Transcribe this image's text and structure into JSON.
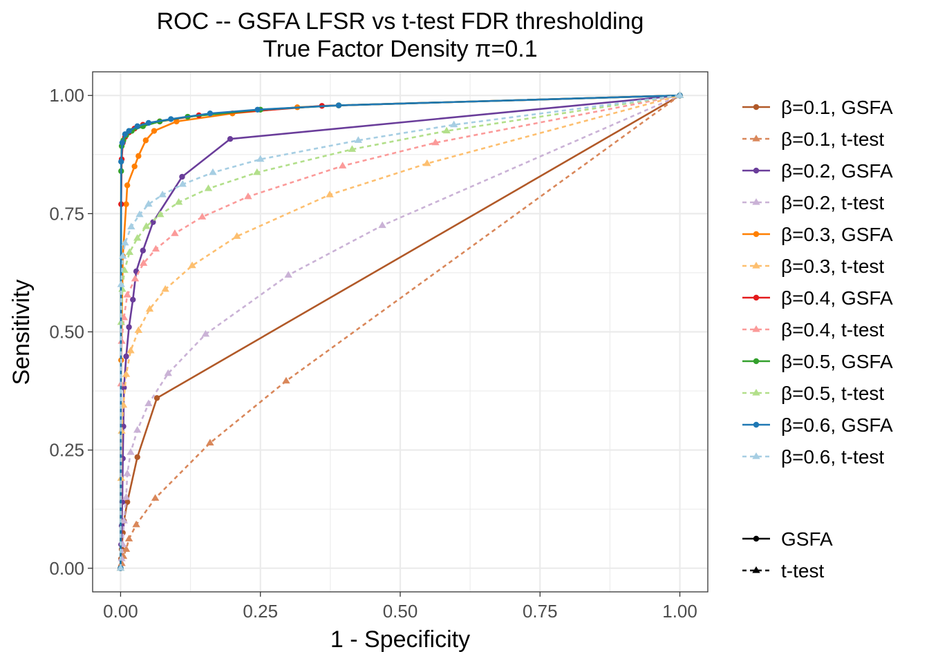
{
  "chart_data": {
    "type": "line",
    "title": "ROC -- GSFA LFSR vs t-test FDR thresholding",
    "subtitle": "True Factor Density π=0.1",
    "xlabel": "1 - Specificity",
    "ylabel": "Sensitivity",
    "xlim": [
      -0.05,
      1.05
    ],
    "ylim": [
      -0.05,
      1.05
    ],
    "xticks": [
      0,
      0.25,
      0.5,
      0.75,
      1
    ],
    "xtick_labels": [
      "0.00",
      "0.25",
      "0.50",
      "0.75",
      "1.00"
    ],
    "yticks": [
      0,
      0.25,
      0.5,
      0.75,
      1
    ],
    "ytick_labels": [
      "0.00",
      "0.25",
      "0.50",
      "0.75",
      "1.00"
    ],
    "grid": true,
    "legend_position": "right",
    "series": [
      {
        "name": "β=0.1, GSFA",
        "color": "#B15928",
        "method": "GSFA",
        "marker": "circle",
        "dashed": false,
        "points": [
          [
            0,
            0
          ],
          [
            0.001,
            0.02
          ],
          [
            0.002,
            0.04
          ],
          [
            0.004,
            0.075
          ],
          [
            0.006,
            0.1
          ],
          [
            0.012,
            0.14
          ],
          [
            0.03,
            0.235
          ],
          [
            0.065,
            0.36
          ],
          [
            1,
            1
          ]
        ]
      },
      {
        "name": "β=0.1, t-test",
        "color": "#D9875A",
        "method": "t-test",
        "marker": "triangle",
        "dashed": true,
        "points": [
          [
            0,
            0
          ],
          [
            0.002,
            0.01
          ],
          [
            0.005,
            0.025
          ],
          [
            0.01,
            0.04
          ],
          [
            0.015,
            0.062
          ],
          [
            0.028,
            0.092
          ],
          [
            0.062,
            0.148
          ],
          [
            0.16,
            0.265
          ],
          [
            0.296,
            0.396
          ],
          [
            1,
            1
          ]
        ]
      },
      {
        "name": "β=0.2, GSFA",
        "color": "#6A3D9A",
        "method": "GSFA",
        "marker": "circle",
        "dashed": false,
        "points": [
          [
            0,
            0
          ],
          [
            0.001,
            0.05
          ],
          [
            0.002,
            0.09
          ],
          [
            0.003,
            0.14
          ],
          [
            0.004,
            0.232
          ],
          [
            0.005,
            0.3
          ],
          [
            0.006,
            0.382
          ],
          [
            0.01,
            0.448
          ],
          [
            0.015,
            0.51
          ],
          [
            0.022,
            0.568
          ],
          [
            0.028,
            0.628
          ],
          [
            0.04,
            0.672
          ],
          [
            0.058,
            0.732
          ],
          [
            0.11,
            0.828
          ],
          [
            0.196,
            0.908
          ],
          [
            1,
            1
          ]
        ]
      },
      {
        "name": "β=0.2, t-test",
        "color": "#CAB2D6",
        "method": "t-test",
        "marker": "triangle",
        "dashed": true,
        "points": [
          [
            0,
            0
          ],
          [
            0.002,
            0.02
          ],
          [
            0.004,
            0.05
          ],
          [
            0.006,
            0.1
          ],
          [
            0.01,
            0.15
          ],
          [
            0.012,
            0.2
          ],
          [
            0.018,
            0.245
          ],
          [
            0.03,
            0.292
          ],
          [
            0.05,
            0.348
          ],
          [
            0.085,
            0.412
          ],
          [
            0.152,
            0.495
          ],
          [
            0.3,
            0.62
          ],
          [
            0.468,
            0.725
          ],
          [
            1,
            1
          ]
        ]
      },
      {
        "name": "β=0.3, GSFA",
        "color": "#FF7F00",
        "method": "GSFA",
        "marker": "circle",
        "dashed": false,
        "points": [
          [
            0,
            0
          ],
          [
            0.001,
            0.44
          ],
          [
            0.004,
            0.66
          ],
          [
            0.01,
            0.77
          ],
          [
            0.012,
            0.81
          ],
          [
            0.025,
            0.85
          ],
          [
            0.032,
            0.872
          ],
          [
            0.045,
            0.905
          ],
          [
            0.06,
            0.925
          ],
          [
            0.1,
            0.945
          ],
          [
            0.2,
            0.962
          ],
          [
            0.316,
            0.975
          ],
          [
            0.39,
            0.979
          ],
          [
            1,
            1
          ]
        ]
      },
      {
        "name": "β=0.3, t-test",
        "color": "#FDBF6F",
        "method": "t-test",
        "marker": "triangle",
        "dashed": true,
        "points": [
          [
            0,
            0
          ],
          [
            0.001,
            0.19
          ],
          [
            0.002,
            0.29
          ],
          [
            0.005,
            0.345
          ],
          [
            0.01,
            0.41
          ],
          [
            0.018,
            0.46
          ],
          [
            0.032,
            0.503
          ],
          [
            0.052,
            0.548
          ],
          [
            0.08,
            0.59
          ],
          [
            0.128,
            0.64
          ],
          [
            0.208,
            0.702
          ],
          [
            0.374,
            0.79
          ],
          [
            0.548,
            0.856
          ],
          [
            1,
            1
          ]
        ]
      },
      {
        "name": "β=0.4, GSFA",
        "color": "#E31A1C",
        "method": "GSFA",
        "marker": "circle",
        "dashed": false,
        "points": [
          [
            0,
            0
          ],
          [
            0.001,
            0.77
          ],
          [
            0.002,
            0.865
          ],
          [
            0.004,
            0.9
          ],
          [
            0.008,
            0.912
          ],
          [
            0.015,
            0.922
          ],
          [
            0.025,
            0.93
          ],
          [
            0.04,
            0.938
          ],
          [
            0.07,
            0.945
          ],
          [
            0.14,
            0.958
          ],
          [
            0.36,
            0.978
          ],
          [
            1,
            1
          ]
        ]
      },
      {
        "name": "β=0.4, t-test",
        "color": "#FB9A99",
        "method": "t-test",
        "marker": "triangle",
        "dashed": true,
        "points": [
          [
            0,
            0
          ],
          [
            0.001,
            0.39
          ],
          [
            0.002,
            0.48
          ],
          [
            0.006,
            0.53
          ],
          [
            0.012,
            0.578
          ],
          [
            0.026,
            0.612
          ],
          [
            0.041,
            0.645
          ],
          [
            0.063,
            0.675
          ],
          [
            0.097,
            0.708
          ],
          [
            0.146,
            0.743
          ],
          [
            0.228,
            0.786
          ],
          [
            0.397,
            0.851
          ],
          [
            0.563,
            0.9
          ],
          [
            1,
            1
          ]
        ]
      },
      {
        "name": "β=0.5, GSFA",
        "color": "#33A02C",
        "method": "GSFA",
        "marker": "circle",
        "dashed": false,
        "points": [
          [
            0,
            0
          ],
          [
            0.001,
            0.84
          ],
          [
            0.002,
            0.893
          ],
          [
            0.005,
            0.905
          ],
          [
            0.01,
            0.916
          ],
          [
            0.02,
            0.925
          ],
          [
            0.04,
            0.935
          ],
          [
            0.07,
            0.945
          ],
          [
            0.12,
            0.955
          ],
          [
            0.25,
            0.97
          ],
          [
            0.39,
            0.979
          ],
          [
            1,
            1
          ]
        ]
      },
      {
        "name": "β=0.5, t-test",
        "color": "#B2DF8A",
        "method": "t-test",
        "marker": "triangle",
        "dashed": true,
        "points": [
          [
            0,
            0
          ],
          [
            0.001,
            0.52
          ],
          [
            0.003,
            0.59
          ],
          [
            0.007,
            0.63
          ],
          [
            0.016,
            0.668
          ],
          [
            0.03,
            0.698
          ],
          [
            0.046,
            0.723
          ],
          [
            0.071,
            0.748
          ],
          [
            0.104,
            0.774
          ],
          [
            0.157,
            0.803
          ],
          [
            0.244,
            0.837
          ],
          [
            0.414,
            0.886
          ],
          [
            0.583,
            0.925
          ],
          [
            1,
            1
          ]
        ]
      },
      {
        "name": "β=0.6, GSFA",
        "color": "#1F78B4",
        "method": "GSFA",
        "marker": "circle",
        "dashed": false,
        "points": [
          [
            0,
            0
          ],
          [
            0.001,
            0.86
          ],
          [
            0.003,
            0.9
          ],
          [
            0.008,
            0.918
          ],
          [
            0.015,
            0.925
          ],
          [
            0.03,
            0.935
          ],
          [
            0.05,
            0.942
          ],
          [
            0.09,
            0.95
          ],
          [
            0.16,
            0.962
          ],
          [
            0.245,
            0.97
          ],
          [
            0.39,
            0.979
          ],
          [
            1,
            1
          ]
        ]
      },
      {
        "name": "β=0.6, t-test",
        "color": "#A6CEE3",
        "method": "t-test",
        "marker": "triangle",
        "dashed": true,
        "points": [
          [
            0,
            0
          ],
          [
            0.001,
            0.6
          ],
          [
            0.004,
            0.66
          ],
          [
            0.008,
            0.688
          ],
          [
            0.019,
            0.722
          ],
          [
            0.034,
            0.748
          ],
          [
            0.05,
            0.77
          ],
          [
            0.075,
            0.79
          ],
          [
            0.111,
            0.812
          ],
          [
            0.165,
            0.837
          ],
          [
            0.25,
            0.865
          ],
          [
            0.425,
            0.905
          ],
          [
            0.596,
            0.938
          ],
          [
            1,
            1
          ]
        ]
      }
    ],
    "linetype_legend": [
      {
        "label": "GSFA",
        "marker": "circle",
        "dashed": false
      },
      {
        "label": "t-test",
        "marker": "triangle",
        "dashed": true
      }
    ]
  }
}
